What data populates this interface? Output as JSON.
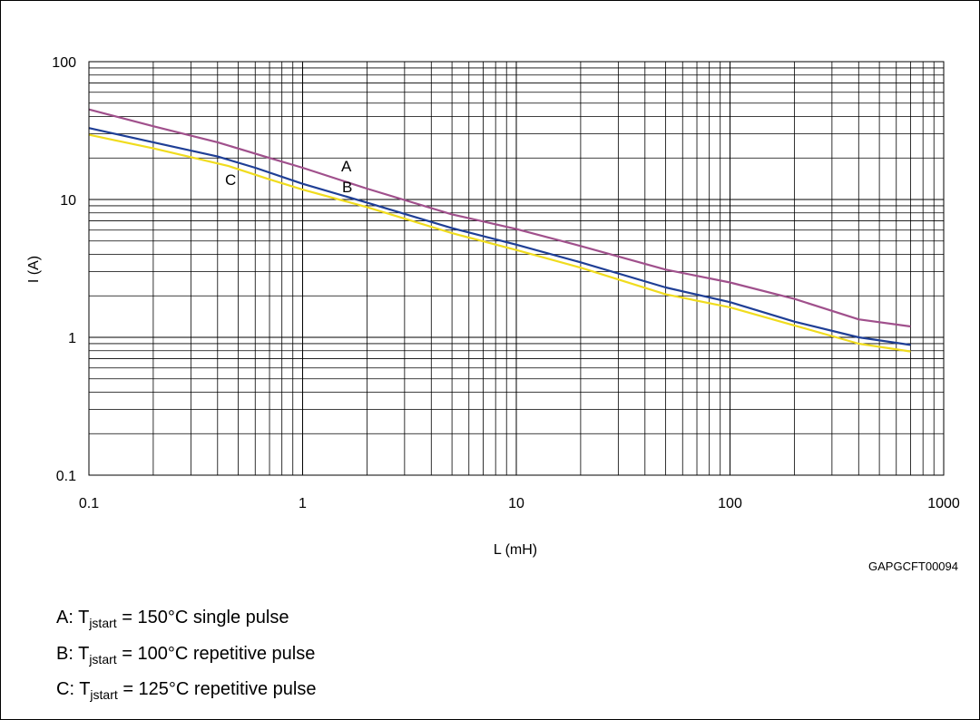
{
  "chart_data": {
    "type": "line",
    "x_scale": "log",
    "y_scale": "log",
    "xlim": [
      0.1,
      1000
    ],
    "ylim": [
      0.1,
      100
    ],
    "grid": true,
    "xlabel": "L (mH)",
    "ylabel": "I (A)",
    "x_tick_labels": [
      "0.1",
      "1",
      "10",
      "100",
      "1000"
    ],
    "y_tick_labels": [
      "0.1",
      "1",
      "10",
      "100"
    ],
    "code": "GAPGCFT00094",
    "series": [
      {
        "label": "A",
        "color": "#A0508C",
        "x": [
          0.1,
          0.2,
          0.4,
          0.7,
          1,
          2,
          5,
          10,
          20,
          50,
          100,
          200,
          400,
          700
        ],
        "y": [
          45,
          34,
          26,
          20,
          17,
          12,
          7.8,
          6.1,
          4.6,
          3.1,
          2.5,
          1.9,
          1.35,
          1.2
        ]
      },
      {
        "label": "B",
        "color": "#1F3F96",
        "x": [
          0.1,
          0.2,
          0.4,
          0.6,
          1,
          2,
          5,
          10,
          20,
          50,
          100,
          200,
          400,
          700
        ],
        "y": [
          33,
          26,
          20.5,
          17,
          13,
          9.5,
          6.2,
          4.7,
          3.5,
          2.3,
          1.8,
          1.3,
          1.0,
          0.88
        ]
      },
      {
        "label": "C",
        "color": "#F0DC1E",
        "x": [
          0.1,
          0.2,
          0.45,
          0.7,
          1,
          2,
          5,
          10,
          20,
          50,
          100,
          200,
          400,
          700
        ],
        "y": [
          29.5,
          23.5,
          17.5,
          14,
          11.8,
          8.8,
          5.7,
          4.3,
          3.2,
          2.05,
          1.65,
          1.22,
          0.9,
          0.79
        ]
      }
    ],
    "legend": [
      {
        "prefix": "A: T",
        "sub": "jstart",
        "suffix": " = 150°C single pulse"
      },
      {
        "prefix": "B: T",
        "sub": "jstart",
        "suffix": " = 100°C repetitive pulse"
      },
      {
        "prefix": "C: T",
        "sub": "jstart",
        "suffix": " = 125°C repetitive pulse"
      }
    ]
  }
}
